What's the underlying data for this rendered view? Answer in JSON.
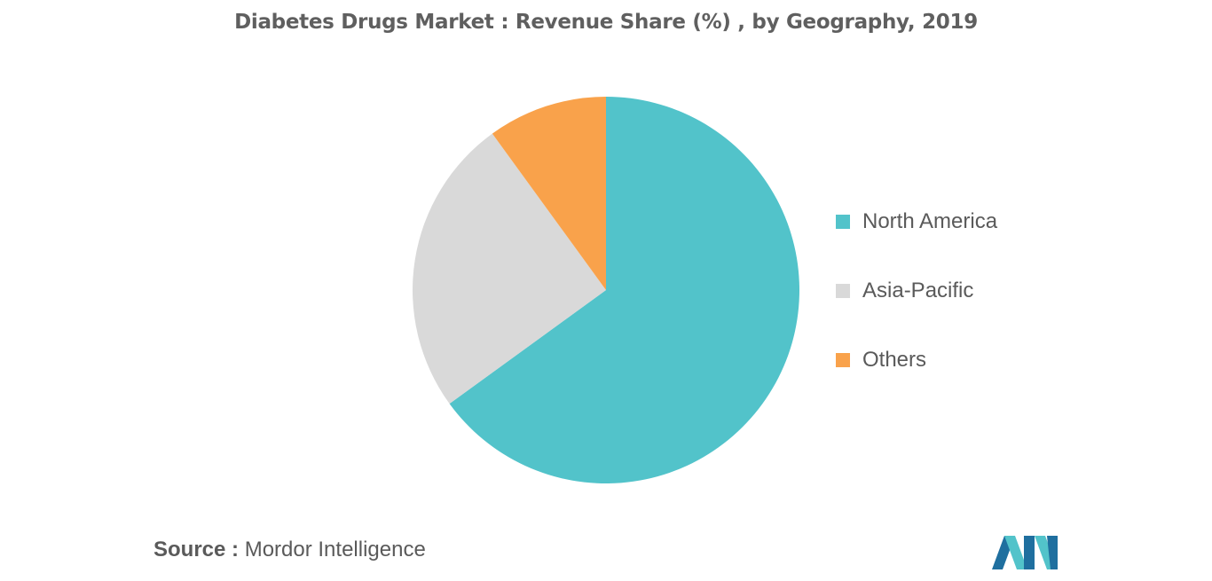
{
  "chart_data": {
    "type": "pie",
    "title": "Diabetes Drugs Market : Revenue Share (%) , by Geography, 2019",
    "slices": [
      {
        "label": "North America",
        "value": 65,
        "color": "#52c3ca"
      },
      {
        "label": "Asia-Pacific",
        "value": 25,
        "color": "#d9d9d9"
      },
      {
        "label": "Others",
        "value": 10,
        "color": "#f9a24b"
      }
    ],
    "legend_position": "right"
  },
  "source": {
    "prefix": "Source :",
    "name": "Mordor Intelligence"
  },
  "logo": {
    "colors": [
      "#1f6f9f",
      "#52c3ca"
    ]
  }
}
